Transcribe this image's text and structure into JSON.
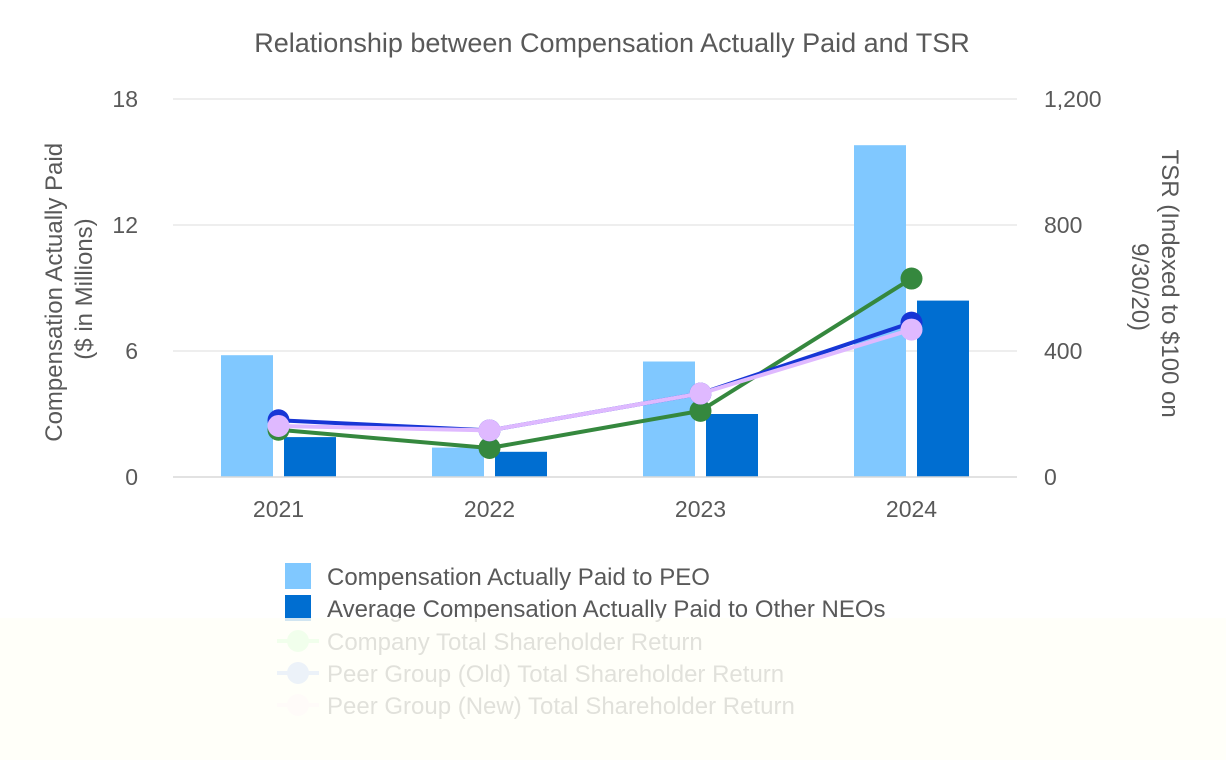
{
  "chart_data": {
    "type": "bar",
    "title": "Relationship between Compensation Actually Paid and TSR",
    "categories": [
      "2021",
      "2022",
      "2023",
      "2024"
    ],
    "left_axis": {
      "label_lines": [
        "Compensation Actually Paid",
        "($ in Millions)"
      ],
      "ylim": [
        0,
        18
      ],
      "ticks": [
        0,
        6,
        12,
        18
      ],
      "tick_labels": [
        "0",
        "6",
        "12",
        "18"
      ]
    },
    "right_axis": {
      "label_lines": [
        "TSR (Indexed to $100 on",
        "9/30/20)"
      ],
      "ylim": [
        0,
        1200
      ],
      "ticks": [
        0,
        400,
        800,
        1200
      ],
      "tick_labels": [
        "0",
        "400",
        "800",
        "1,200"
      ]
    },
    "grid": true,
    "legend_position": "bottom",
    "bar_series": [
      {
        "name": "Compensation Actually Paid to PEO",
        "color": "#80c8ff",
        "values": [
          5.8,
          1.4,
          5.5,
          15.8
        ]
      },
      {
        "name": "Average Compensation Actually Paid to Other NEOs",
        "color": "#006ed1",
        "values": [
          1.9,
          1.2,
          3.0,
          8.4
        ]
      }
    ],
    "line_series": [
      {
        "name": "Company Total Shareholder Return",
        "color": "#35883e",
        "values": [
          150,
          92,
          210,
          630
        ]
      },
      {
        "name": "Peer Group (Old) Total Shareholder Return",
        "color": "#1736d6",
        "values": [
          180,
          148,
          265,
          490
        ]
      },
      {
        "name": "Peer Group (New) Total Shareholder Return",
        "color": "#dfb9ff",
        "values": [
          162,
          148,
          265,
          468
        ]
      }
    ],
    "legend_colors": {
      "line_markers": [
        "#b3ffb7",
        "#94b6ff",
        "#ffe6ff"
      ]
    }
  }
}
